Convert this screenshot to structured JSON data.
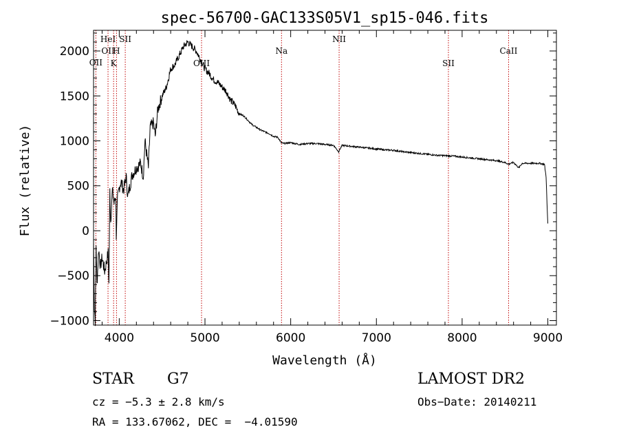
{
  "chart_data": {
    "type": "line",
    "title": "spec-56700-GAC133S05V1_sp15-046.fits",
    "xlabel": "Wavelength (Å)",
    "ylabel": "Flux (relative)",
    "xlim": [
      3700,
      9100
    ],
    "ylim": [
      -1050,
      2230
    ],
    "xticks": [
      4000,
      5000,
      6000,
      7000,
      8000,
      9000
    ],
    "yticks": [
      -1000,
      -500,
      0,
      500,
      1000,
      1500,
      2000
    ],
    "grid": false,
    "series": [
      {
        "values": [
          [
            3700,
            -100
          ],
          [
            3710,
            -850
          ],
          [
            3720,
            -1000
          ],
          [
            3730,
            -150
          ],
          [
            3740,
            -600
          ],
          [
            3760,
            -200
          ],
          [
            3780,
            -400
          ],
          [
            3800,
            -300
          ],
          [
            3830,
            -450
          ],
          [
            3850,
            -350
          ],
          [
            3870,
            -250
          ],
          [
            3880,
            -600
          ],
          [
            3890,
            450
          ],
          [
            3900,
            100
          ],
          [
            3920,
            450
          ],
          [
            3940,
            300
          ],
          [
            3960,
            400
          ],
          [
            3965,
            -50
          ],
          [
            3980,
            350
          ],
          [
            4000,
            480
          ],
          [
            4020,
            550
          ],
          [
            4050,
            450
          ],
          [
            4080,
            600
          ],
          [
            4100,
            380
          ],
          [
            4150,
            620
          ],
          [
            4200,
            700
          ],
          [
            4250,
            750
          ],
          [
            4280,
            600
          ],
          [
            4300,
            1000
          ],
          [
            4340,
            700
          ],
          [
            4360,
            1150
          ],
          [
            4400,
            1200
          ],
          [
            4420,
            1050
          ],
          [
            4450,
            1350
          ],
          [
            4500,
            1500
          ],
          [
            4550,
            1600
          ],
          [
            4600,
            1800
          ],
          [
            4650,
            1850
          ],
          [
            4700,
            1950
          ],
          [
            4750,
            2050
          ],
          [
            4800,
            2100
          ],
          [
            4850,
            2050
          ],
          [
            4900,
            2000
          ],
          [
            4950,
            1900
          ],
          [
            5000,
            1800
          ],
          [
            5050,
            1750
          ],
          [
            5100,
            1680
          ],
          [
            5150,
            1650
          ],
          [
            5200,
            1600
          ],
          [
            5250,
            1550
          ],
          [
            5300,
            1450
          ],
          [
            5350,
            1400
          ],
          [
            5400,
            1300
          ],
          [
            5450,
            1280
          ],
          [
            5500,
            1230
          ],
          [
            5550,
            1180
          ],
          [
            5600,
            1150
          ],
          [
            5650,
            1120
          ],
          [
            5700,
            1100
          ],
          [
            5750,
            1080
          ],
          [
            5800,
            1050
          ],
          [
            5850,
            1040
          ],
          [
            5890,
            980
          ],
          [
            5920,
            970
          ],
          [
            6000,
            980
          ],
          [
            6100,
            960
          ],
          [
            6200,
            970
          ],
          [
            6300,
            970
          ],
          [
            6400,
            960
          ],
          [
            6500,
            950
          ],
          [
            6560,
            880
          ],
          [
            6600,
            950
          ],
          [
            6700,
            940
          ],
          [
            6800,
            930
          ],
          [
            6900,
            920
          ],
          [
            7000,
            910
          ],
          [
            7100,
            900
          ],
          [
            7200,
            895
          ],
          [
            7300,
            880
          ],
          [
            7400,
            870
          ],
          [
            7500,
            860
          ],
          [
            7600,
            850
          ],
          [
            7700,
            840
          ],
          [
            7800,
            835
          ],
          [
            7900,
            830
          ],
          [
            8000,
            820
          ],
          [
            8100,
            810
          ],
          [
            8200,
            800
          ],
          [
            8300,
            790
          ],
          [
            8400,
            780
          ],
          [
            8498,
            760
          ],
          [
            8542,
            740
          ],
          [
            8600,
            760
          ],
          [
            8662,
            700
          ],
          [
            8700,
            750
          ],
          [
            8800,
            750
          ],
          [
            8900,
            750
          ],
          [
            8960,
            740
          ],
          [
            8980,
            600
          ],
          [
            8990,
            300
          ],
          [
            9000,
            80
          ]
        ]
      }
    ],
    "lines": [
      {
        "x": 3727,
        "labels": [
          "OII"
        ],
        "row": [
          2
        ]
      },
      {
        "x": 3869,
        "labels": [
          "OII",
          "HeI"
        ],
        "row": [
          1,
          0
        ]
      },
      {
        "x": 3934,
        "labels": [
          "K"
        ],
        "row": [
          3
        ]
      },
      {
        "x": 3968,
        "labels": [
          "H"
        ],
        "row": [
          1
        ]
      },
      {
        "x": 4070,
        "labels": [
          "SII"
        ],
        "row": [
          0
        ]
      },
      {
        "x": 4960,
        "labels": [
          "OIII"
        ],
        "row": [
          3
        ]
      },
      {
        "x": 5893,
        "labels": [
          "Na"
        ],
        "row": [
          1
        ]
      },
      {
        "x": 6565,
        "labels": [
          "NII"
        ],
        "row": [
          0
        ]
      },
      {
        "x": 7840,
        "labels": [
          "SII"
        ],
        "row": [
          3
        ]
      },
      {
        "x": 8542,
        "labels": [
          "CaII"
        ],
        "row": [
          1
        ]
      }
    ]
  },
  "info": {
    "object_class": "STAR",
    "subclass": "G7",
    "cz": "cz = −5.3 ± 2.8 km/s",
    "coords": "RA = 133.67062, DEC =  −4.01590",
    "survey": "LAMOST DR2",
    "obs_date": "Obs−Date: 20140211"
  },
  "colors": {
    "axis": "#000000",
    "spectrum": "#000000",
    "line_marker": "#c00000"
  }
}
